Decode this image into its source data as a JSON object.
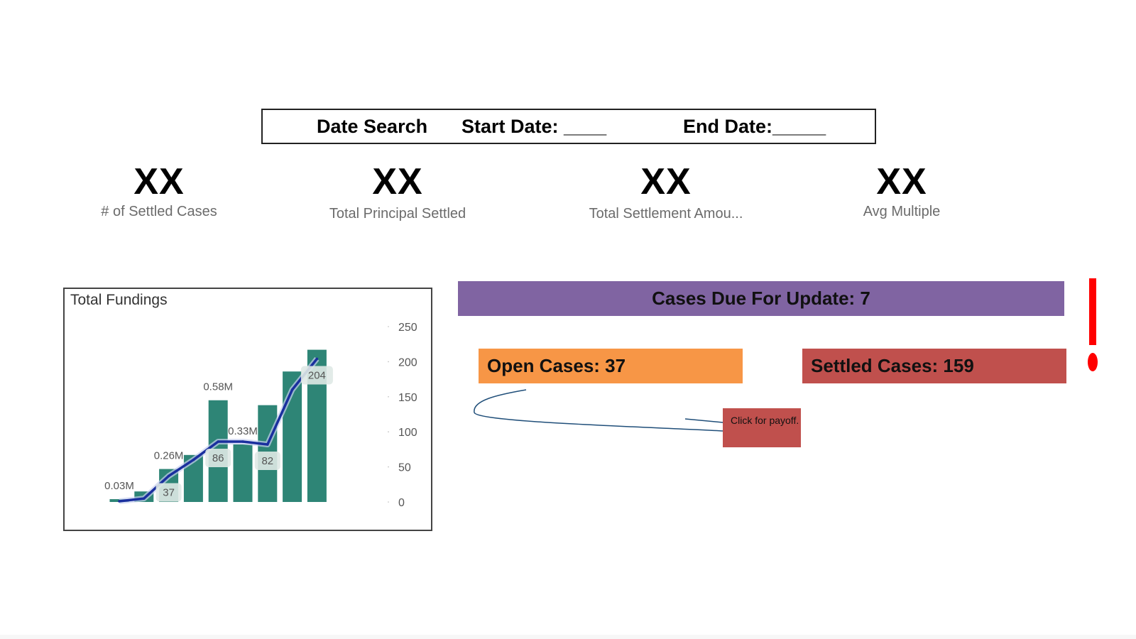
{
  "date_search": {
    "label": "Date Search",
    "start": "Start Date: ____",
    "end": "End Date:_____"
  },
  "kpis": [
    {
      "value": "XX",
      "label": "# of Settled Cases"
    },
    {
      "value": "XX",
      "label": "Total Principal Settled"
    },
    {
      "value": "XX",
      "label": "Total Settlement Amou..."
    },
    {
      "value": "XX",
      "label": "Avg Multiple"
    }
  ],
  "chart_data": {
    "type": "bar",
    "title": "Total Fundings",
    "ylim": [
      0,
      250
    ],
    "y_ticks": [
      "250",
      "200",
      "150",
      "100",
      "50",
      "0"
    ],
    "grid": false,
    "bar_color": "#2e8576",
    "line_color": "#1a2f9e",
    "series": [
      {
        "kind": "bar",
        "values": [
          4,
          15,
          47,
          67,
          145,
          82,
          138,
          186,
          217
        ]
      },
      {
        "kind": "line",
        "values": [
          1,
          5,
          37,
          60,
          86,
          86,
          82,
          160,
          204
        ]
      }
    ],
    "bar_labels": [
      {
        "index": 0,
        "text": "0.03M"
      },
      {
        "index": 2,
        "text": "0.26M"
      },
      {
        "index": 4,
        "text": "0.58M"
      },
      {
        "index": 5,
        "text": "0.33M"
      }
    ],
    "line_labels": [
      {
        "index": 2,
        "text": "37"
      },
      {
        "index": 4,
        "text": "86"
      },
      {
        "index": 6,
        "text": "82"
      },
      {
        "index": 8,
        "text": "204"
      }
    ]
  },
  "banner": {
    "text": "Cases Due For Update: 7",
    "color": "#8064a2"
  },
  "open_cases": {
    "text": "Open Cases: 37",
    "color": "#f79646"
  },
  "settled_cases": {
    "text": "Settled Cases: 159",
    "color": "#c0504d"
  },
  "note": {
    "text": "Click for payoff."
  }
}
